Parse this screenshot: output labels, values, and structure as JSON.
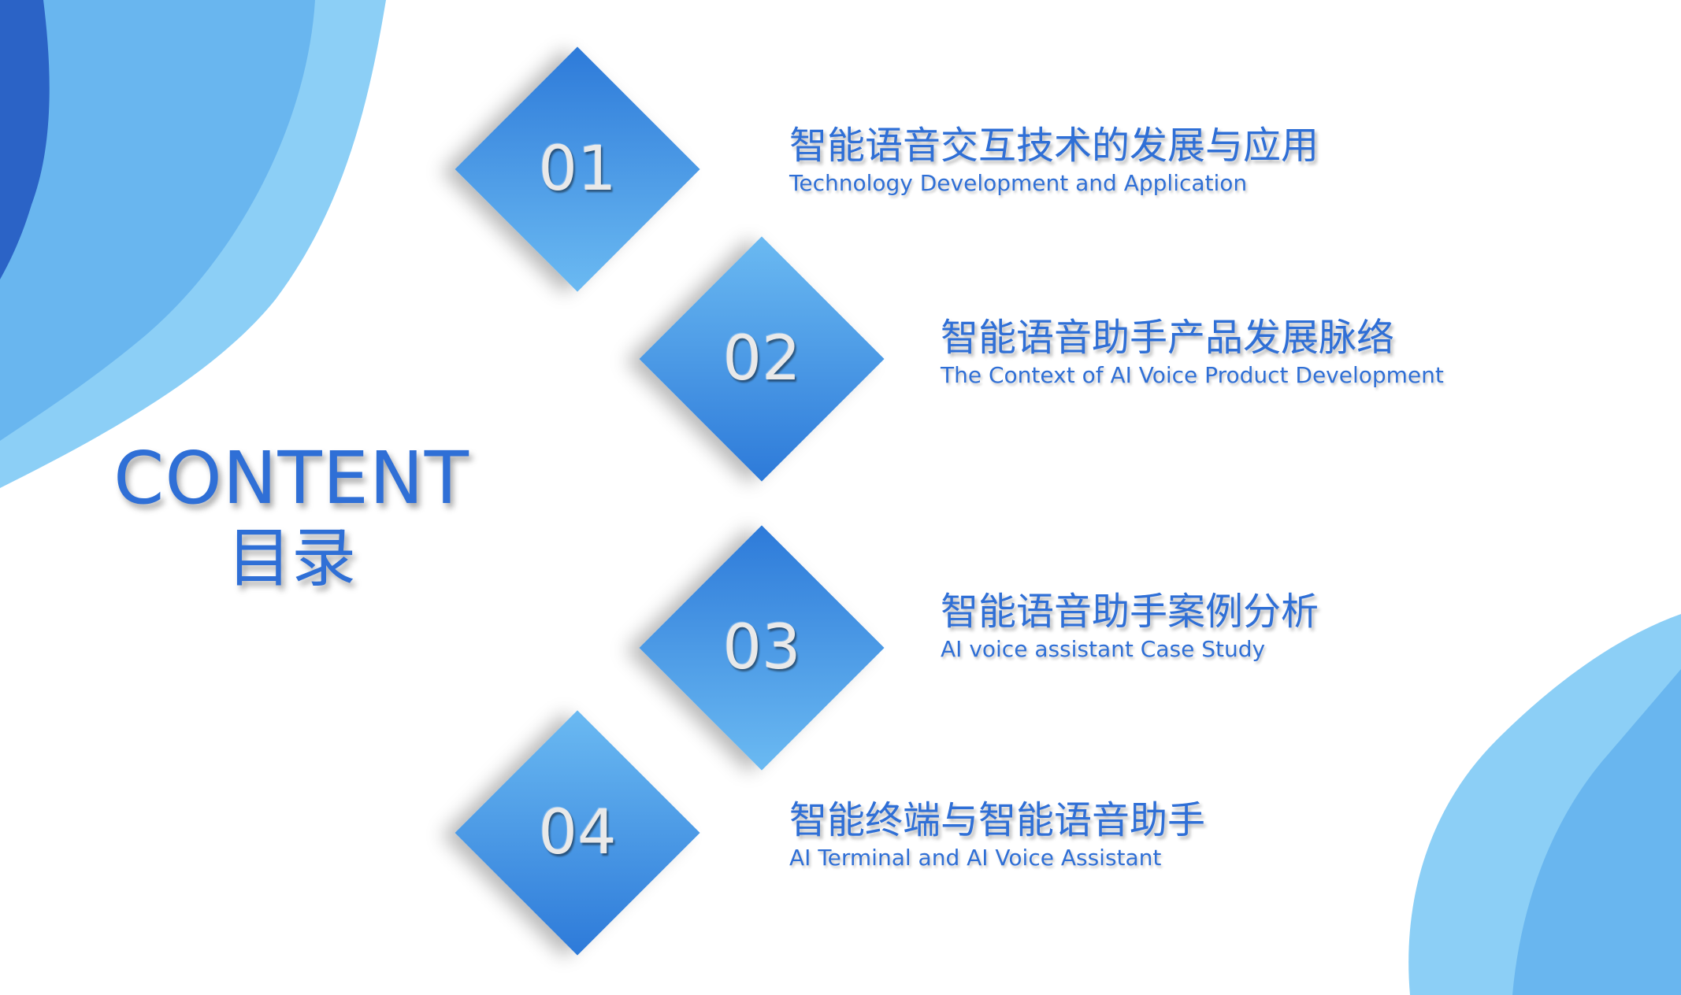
{
  "title": {
    "en": "CONTENT",
    "zh": "目录"
  },
  "items": [
    {
      "number": "01",
      "zh": "智能语音交互技术的发展与应用",
      "en": "Technology Development and Application"
    },
    {
      "number": "02",
      "zh": "智能语音助手产品发展脉络",
      "en": "The Context of AI Voice Product Development"
    },
    {
      "number": "03",
      "zh": "智能语音助手案例分析",
      "en": "AI voice assistant Case Study"
    },
    {
      "number": "04",
      "zh": "智能终端与智能语音助手",
      "en": "AI Terminal and AI Voice Assistant"
    }
  ],
  "colors": {
    "primary_text": "#2f6fd6",
    "diamond_dark": "#2d7ad9",
    "diamond_light": "#6bbaf2",
    "bg_wave_dark": "#2b63c6",
    "bg_wave_mid": "#69b6ef",
    "bg_wave_light": "#8ccff6"
  }
}
